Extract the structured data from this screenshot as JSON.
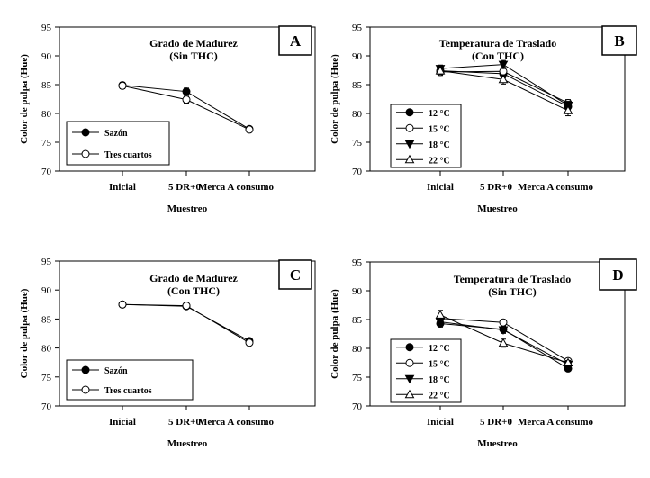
{
  "chart_data": [
    {
      "type": "line",
      "panel_letter": "A",
      "title": [
        "Grado de Madurez",
        "(Sin THC)"
      ],
      "xlabel": "Muestreo",
      "ylabel": "Color de pulpa (Hue)",
      "categories": [
        "Inicial",
        "5 DR+0",
        "Merca A consumo"
      ],
      "ylim": [
        70,
        95
      ],
      "yticks": [
        70,
        75,
        80,
        85,
        90,
        95
      ],
      "series": [
        {
          "name": "Sazón",
          "marker": "circle-filled",
          "values": [
            84.9,
            83.8,
            77.3
          ],
          "errors": [
            0.5,
            0.6,
            0.4
          ]
        },
        {
          "name": "Tres cuartos",
          "marker": "circle-open",
          "values": [
            84.8,
            82.4,
            77.2
          ],
          "errors": [
            0.5,
            0.6,
            0.4
          ]
        }
      ]
    },
    {
      "type": "line",
      "panel_letter": "B",
      "title": [
        "Temperatura de Traslado",
        "(Con THC)"
      ],
      "xlabel": "Muestreo",
      "ylabel": "Color de pulpa (Hue)",
      "categories": [
        "Inicial",
        "5 DR+0",
        "Merca A consumo"
      ],
      "ylim": [
        70,
        95
      ],
      "yticks": [
        70,
        75,
        80,
        85,
        90,
        95
      ],
      "series": [
        {
          "name": "12 °C",
          "marker": "circle-filled",
          "values": [
            87.4,
            86.9,
            81.2
          ],
          "errors": [
            0.6,
            0.7,
            0.8
          ]
        },
        {
          "name": "15 °C",
          "marker": "circle-open",
          "values": [
            87.2,
            87.3,
            81.8
          ],
          "errors": [
            0.6,
            0.7,
            0.6
          ]
        },
        {
          "name": "18 °C",
          "marker": "triangle-down-filled",
          "values": [
            87.8,
            88.5,
            81.4
          ],
          "errors": [
            0.6,
            0.7,
            0.7
          ]
        },
        {
          "name": "22 °C",
          "marker": "triangle-up-open",
          "values": [
            87.4,
            85.9,
            80.5
          ],
          "errors": [
            0.6,
            0.8,
            0.9
          ]
        }
      ]
    },
    {
      "type": "line",
      "panel_letter": "C",
      "title": [
        "Grado de Madurez",
        "(Con THC)"
      ],
      "xlabel": "Muestreo",
      "ylabel": "Color de pulpa (Hue)",
      "categories": [
        "Inicial",
        "5 DR+0",
        "Merca A consumo"
      ],
      "ylim": [
        70,
        95
      ],
      "yticks": [
        70,
        75,
        80,
        85,
        90,
        95
      ],
      "series": [
        {
          "name": "Sazón",
          "marker": "circle-filled",
          "values": [
            87.5,
            87.2,
            81.2
          ],
          "errors": [
            0.3,
            0.4,
            0.4
          ]
        },
        {
          "name": "Tres cuartos",
          "marker": "circle-open",
          "values": [
            87.5,
            87.3,
            80.9
          ],
          "errors": [
            0.3,
            0.4,
            0.4
          ]
        }
      ]
    },
    {
      "type": "line",
      "panel_letter": "D",
      "title": [
        "Temperatura de Traslado",
        "(Sin THC)"
      ],
      "xlabel": "Muestreo",
      "ylabel": "Color de pulpa (Hue)",
      "categories": [
        "Inicial",
        "5 DR+0",
        "Merca A consumo"
      ],
      "ylim": [
        70,
        95
      ],
      "yticks": [
        70,
        75,
        80,
        85,
        90,
        95
      ],
      "series": [
        {
          "name": "12 °C",
          "marker": "circle-filled",
          "values": [
            84.3,
            83.3,
            76.5
          ],
          "errors": [
            0.6,
            0.6,
            0.4
          ]
        },
        {
          "name": "15 °C",
          "marker": "circle-open",
          "values": [
            85.2,
            84.5,
            77.8
          ],
          "errors": [
            0.6,
            0.5,
            0.4
          ]
        },
        {
          "name": "18 °C",
          "marker": "triangle-down-filled",
          "values": [
            84.6,
            83.2,
            77.2
          ],
          "errors": [
            0.6,
            0.6,
            0.4
          ]
        },
        {
          "name": "22 °C",
          "marker": "triangle-up-open",
          "values": [
            85.8,
            80.9,
            77.5
          ],
          "errors": [
            0.8,
            0.7,
            0.4
          ]
        }
      ]
    }
  ]
}
